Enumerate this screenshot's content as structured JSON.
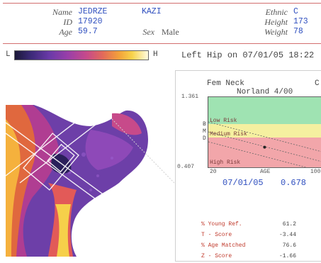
{
  "patient": {
    "name_label": "Name",
    "name_value": "JEDRZE",
    "surname": "KAZI",
    "id_label": "ID",
    "id_value": "17920",
    "age_label": "Age",
    "age_value": "59.7",
    "sex_label": "Sex",
    "sex_value": "Male",
    "ethnic_label": "Ethnic",
    "ethnic_value": "C",
    "height_label": "Height",
    "height_value": "173",
    "weight_label": "Weight",
    "weight_value": "78"
  },
  "scale": {
    "low": "L",
    "high": "H"
  },
  "scan": {
    "title": "Left Hip",
    "on": "on",
    "datetime": "07/01/05 18:22"
  },
  "chart": {
    "region": "Fem Neck",
    "reference": "Norland 4/00",
    "corner": "C",
    "y_top": "1.361",
    "y_bottom": "0.407",
    "bmd_letters": [
      "B",
      "M",
      "D"
    ],
    "x_start": "20",
    "x_label": "AGE",
    "x_end": "100",
    "zones": [
      {
        "label": "Low Risk",
        "color": "#9fe3b2"
      },
      {
        "label": "Medium Risk",
        "color": "#f5f0a0"
      },
      {
        "label": "High Risk",
        "color": "#f2a6aa"
      }
    ]
  },
  "chart_data": {
    "type": "scatter",
    "x": [
      59.7
    ],
    "y": [
      0.678
    ],
    "xlim": [
      20,
      100
    ],
    "ylim": [
      0.407,
      1.361
    ],
    "xlabel": "AGE",
    "ylabel": ""
  },
  "result": {
    "date": "07/01/05",
    "bmd": "0.678"
  },
  "stats": [
    {
      "label": "% Young Ref.",
      "value": "61.2"
    },
    {
      "label": "T - Score",
      "value": "-3.44"
    },
    {
      "label": "% Age Matched",
      "value": "76.6"
    },
    {
      "label": "Z - Score",
      "value": "-1.66"
    }
  ]
}
